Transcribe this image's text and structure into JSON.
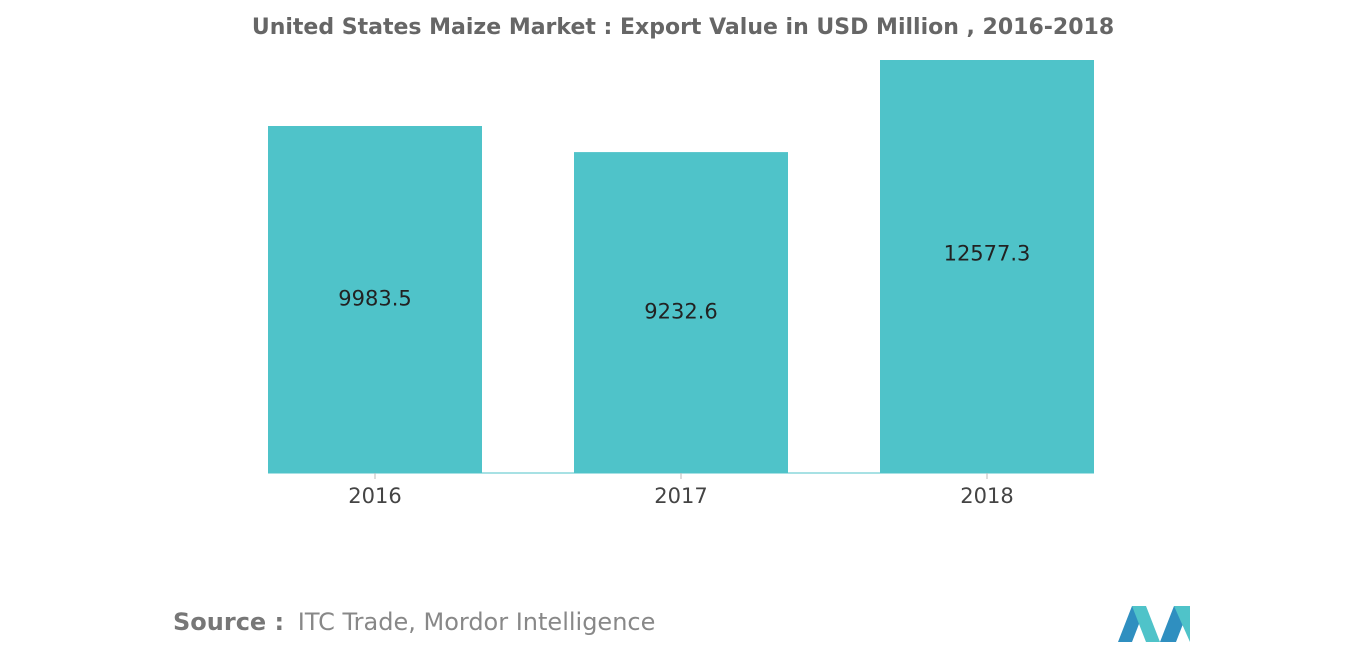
{
  "chart_data": {
    "type": "bar",
    "title": "United States Maize Market : Export Value in USD Million , 2016-2018",
    "categories": [
      "2016",
      "2017",
      "2018"
    ],
    "values": [
      9983.5,
      9232.6,
      12577.3
    ],
    "color": "#4fc3c9",
    "source_label": "Source :",
    "source_text": "ITC Trade, Mordor Intelligence"
  }
}
